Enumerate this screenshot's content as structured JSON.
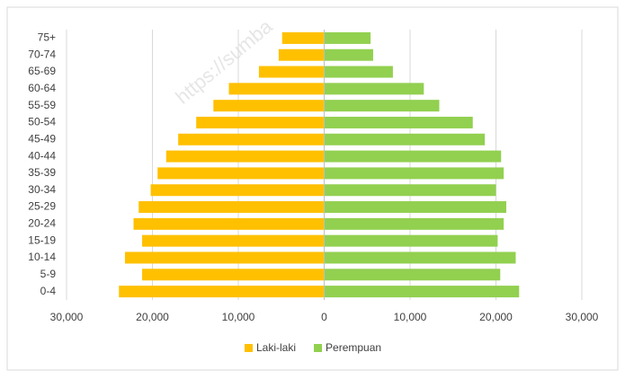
{
  "chart_data": {
    "type": "pyramid",
    "watermark": "https://sumba",
    "categories": [
      "0-4",
      "5-9",
      "10-14",
      "15-19",
      "20-24",
      "25-29",
      "30-34",
      "35-39",
      "40-44",
      "45-49",
      "50-54",
      "55-59",
      "60-64",
      "65-69",
      "70-74",
      "75+"
    ],
    "series": [
      {
        "name": "Laki-laki",
        "color": "#ffc000",
        "values": [
          -23900,
          -21200,
          -23200,
          -21200,
          -22200,
          -21600,
          -20200,
          -19400,
          -18400,
          -17000,
          -14900,
          -12900,
          -11100,
          -7600,
          -5300,
          -4900
        ]
      },
      {
        "name": "Perempuan",
        "color": "#92d050",
        "values": [
          22700,
          20500,
          22300,
          20200,
          20900,
          21200,
          20000,
          20900,
          20600,
          18700,
          17300,
          13400,
          11600,
          8000,
          5700,
          5400
        ]
      }
    ],
    "xlim": [
      -30000,
      30000
    ],
    "xticks": [
      {
        "value": -30000,
        "label": "30,000"
      },
      {
        "value": -20000,
        "label": "20,000"
      },
      {
        "value": -10000,
        "label": "10,000"
      },
      0,
      {
        "value": 10000,
        "label": "10,000"
      },
      {
        "value": 20000,
        "label": "20,000"
      },
      {
        "value": 30000,
        "label": "30,000"
      }
    ],
    "grid": true,
    "legend": "bottom"
  }
}
